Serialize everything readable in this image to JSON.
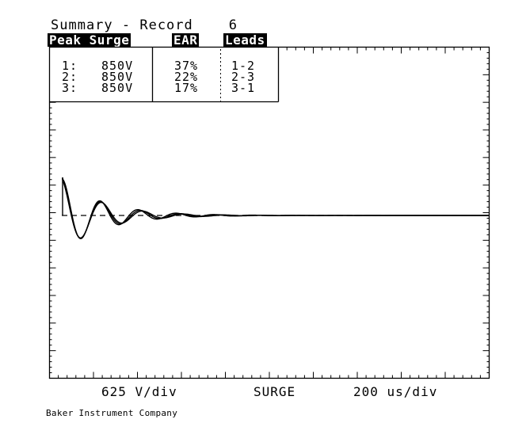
{
  "title": {
    "label": "Summary - Record",
    "record_number": "6"
  },
  "table": {
    "headers": {
      "peak_surge": "Peak Surge",
      "ear": "EAR",
      "leads": "Leads"
    },
    "rows": [
      {
        "index": "1:",
        "peak": "850V",
        "ear": "37%",
        "leads": "1-2"
      },
      {
        "index": "2:",
        "peak": "850V",
        "ear": "22%",
        "leads": "2-3"
      },
      {
        "index": "3:",
        "peak": "850V",
        "ear": "17%",
        "leads": "3-1"
      }
    ]
  },
  "footer": {
    "vertical_scale": "625 V/div",
    "mode": "SURGE",
    "time_scale": "200 us/div"
  },
  "company": "Baker Instrument Company",
  "colors": {
    "foreground": "#000000",
    "background": "#ffffff"
  }
}
